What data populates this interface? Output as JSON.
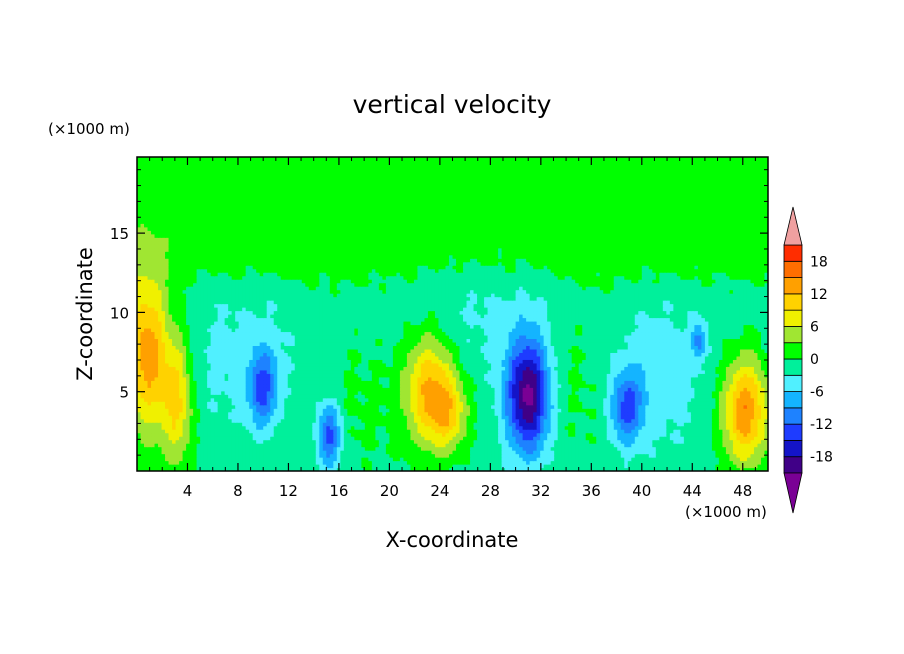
{
  "chart_data": {
    "type": "heatmap",
    "title": "vertical velocity",
    "xlabel": "X-coordinate",
    "ylabel": "Z-coordinate",
    "x_unit": "(×1000 m)",
    "y_unit": "(×1000 m)",
    "xlim": [
      0,
      50
    ],
    "ylim": [
      0,
      19.8
    ],
    "x_ticks": [
      4,
      8,
      12,
      16,
      20,
      24,
      28,
      32,
      36,
      40,
      44,
      48
    ],
    "y_ticks": [
      5,
      10,
      15
    ],
    "x_tick_labels": [
      "4",
      "8",
      "12",
      "16",
      "20",
      "24",
      "28",
      "32",
      "36",
      "40",
      "44",
      "48"
    ],
    "y_tick_labels": [
      "5",
      "10",
      "15"
    ],
    "colorbar": {
      "levels": [
        -21,
        -18,
        -15,
        -12,
        -9,
        -6,
        -3,
        0,
        3,
        6,
        9,
        12,
        15,
        18,
        21
      ],
      "colors": [
        "#7a0095",
        "#400087",
        "#1414c8",
        "#1e3cff",
        "#1e82ff",
        "#14b4ff",
        "#50f0ff",
        "#00f09b",
        "#00ff00",
        "#a0e632",
        "#f0f000",
        "#ffd200",
        "#ffa000",
        "#ff6e00",
        "#ff2d00",
        "#e60000",
        "#f0a0a0"
      ],
      "tick_labels": [
        "18",
        "12",
        "6",
        "0",
        "-6",
        "-12",
        "-18"
      ],
      "tick_values": [
        18,
        12,
        6,
        0,
        -6,
        -12,
        -18
      ]
    },
    "features": [
      {
        "x": 0.8,
        "z": 7.5,
        "w": 16,
        "sx": 1.2,
        "sz": 3.5
      },
      {
        "x": 3.2,
        "z": 4.5,
        "w": 11,
        "sx": 0.9,
        "sz": 3.0
      },
      {
        "x": 10.0,
        "z": 5.2,
        "w": -11,
        "sx": 0.8,
        "sz": 1.7
      },
      {
        "x": 15.2,
        "z": 2.3,
        "w": -13,
        "sx": 0.7,
        "sz": 1.5
      },
      {
        "x": 23.2,
        "z": 5.2,
        "w": 13,
        "sx": 1.4,
        "sz": 2.5
      },
      {
        "x": 24.8,
        "z": 3.6,
        "w": 8,
        "sx": 1.1,
        "sz": 1.7
      },
      {
        "x": 31.0,
        "z": 4.8,
        "w": -21,
        "sx": 1.2,
        "sz": 2.5
      },
      {
        "x": 38.8,
        "z": 4.0,
        "w": -11,
        "sx": 0.9,
        "sz": 1.6
      },
      {
        "x": 44.5,
        "z": 8.3,
        "w": -8,
        "sx": 0.4,
        "sz": 0.8
      },
      {
        "x": 48.2,
        "z": 3.8,
        "w": 16,
        "sx": 1.3,
        "sz": 2.4
      },
      {
        "x": 16.2,
        "z": 5.5,
        "w": 3,
        "sx": 4.0,
        "sz": 4.0
      },
      {
        "x": 35.5,
        "z": 6.5,
        "w": 3,
        "sx": 3.0,
        "sz": 4.0
      },
      {
        "x": 40.5,
        "z": 6.0,
        "w": -4,
        "sx": 3.0,
        "sz": 3.0
      },
      {
        "x": 10.0,
        "z": 7.0,
        "w": -3,
        "sx": 5.0,
        "sz": 3.0
      },
      {
        "x": 28.0,
        "z": 10.0,
        "w": -2,
        "sx": 6.0,
        "sz": 3.0
      }
    ],
    "background": {
      "upper": 1.5,
      "lower": -1.5,
      "transition_z": 13.5
    }
  }
}
